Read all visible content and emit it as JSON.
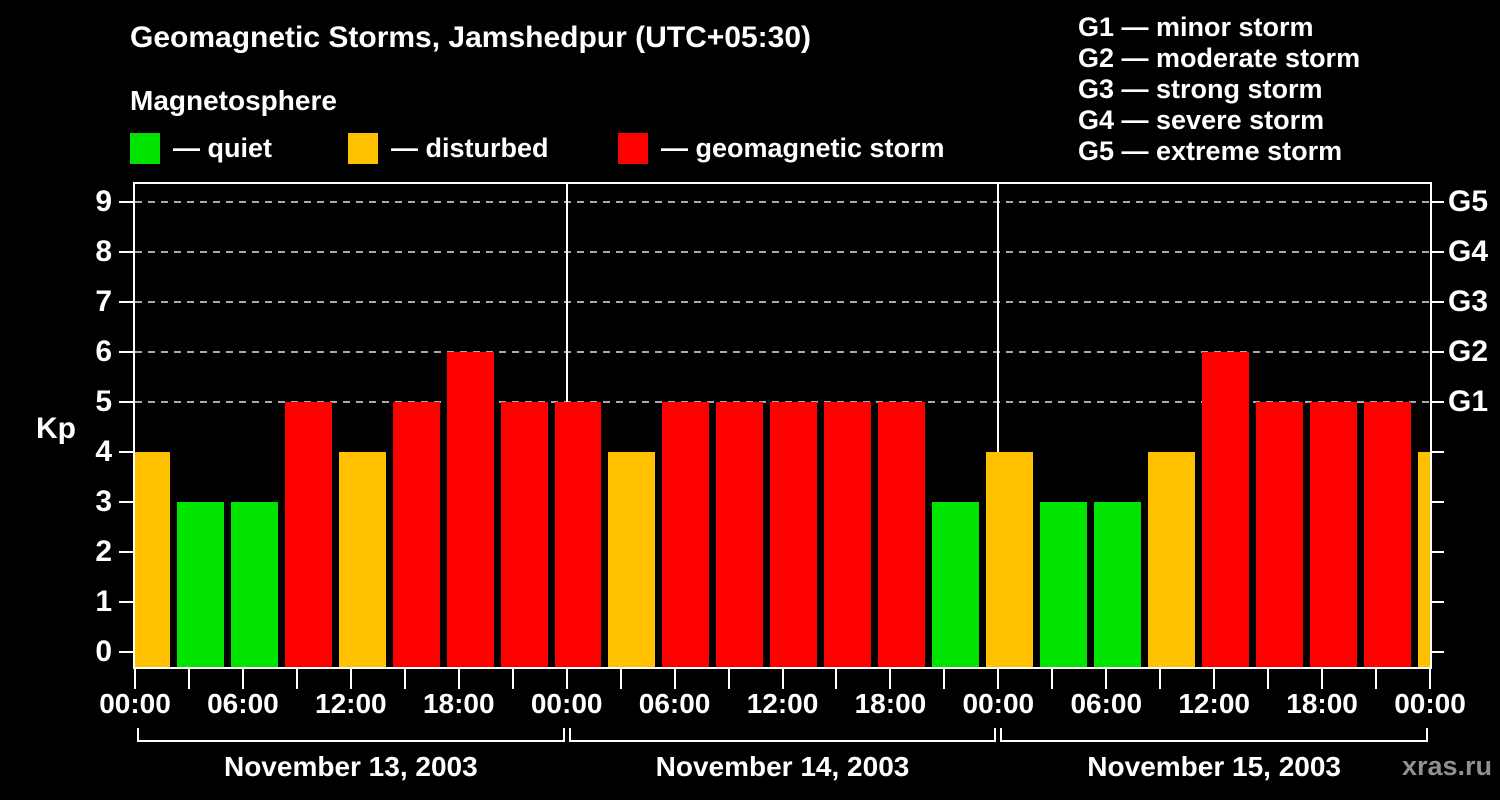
{
  "header": {
    "title": "Geomagnetic Storms, Jamshedpur (UTC+05:30)",
    "subtitle": "Magnetosphere"
  },
  "legend": {
    "items": [
      {
        "status": "quiet",
        "label": "— quiet"
      },
      {
        "status": "disturbed",
        "label": "— disturbed"
      },
      {
        "status": "storm",
        "label": "— geomagnetic storm"
      }
    ]
  },
  "g_scale_legend": {
    "lines": [
      "G1 — minor storm",
      "G2 — moderate storm",
      "G3 — strong storm",
      "G4 — severe storm",
      "G5 — extreme storm"
    ]
  },
  "axis": {
    "y_title": "Kp",
    "y_ticks": [
      0,
      1,
      2,
      3,
      4,
      5,
      6,
      7,
      8,
      9
    ],
    "g_levels": [
      {
        "label": "G1",
        "kp": 5
      },
      {
        "label": "G2",
        "kp": 6
      },
      {
        "label": "G3",
        "kp": 7
      },
      {
        "label": "G4",
        "kp": 8
      },
      {
        "label": "G5",
        "kp": 9
      }
    ],
    "gridlines_at_kp": [
      5,
      6,
      7,
      8,
      9
    ],
    "time_label_cycle": [
      "00:00",
      "06:00",
      "12:00",
      "18:00"
    ]
  },
  "watermark": "xras.ru",
  "chart_data": {
    "type": "bar",
    "title": "Geomagnetic Storms, Jamshedpur (UTC+05:30)",
    "subtitle": "Magnetosphere",
    "ylabel": "Kp",
    "ylim": [
      0,
      9
    ],
    "bars_per_day": 8,
    "hours_per_bar": 3,
    "days": [
      {
        "date": "November 13, 2003",
        "kp": [
          4,
          3,
          3,
          5,
          4,
          5,
          6,
          5
        ]
      },
      {
        "date": "November 14, 2003",
        "kp": [
          5,
          4,
          5,
          5,
          5,
          5,
          5,
          3
        ]
      },
      {
        "date": "November 15, 2003",
        "kp": [
          4,
          3,
          3,
          4,
          6,
          5,
          5,
          5
        ]
      }
    ],
    "trailing_partial_bar_kp": 4,
    "leading_bar_clipped_left": true,
    "color_rule": {
      "quiet_max_kp": 3,
      "disturbed_kp": 4,
      "storm_min_kp": 5
    },
    "colors": {
      "quiet": "#00e400",
      "disturbed": "#ffc000",
      "storm": "#ff0000",
      "grid": "#a8a8a8",
      "axis": "#ffffff",
      "background": "#000000"
    },
    "legend_position": "top-left",
    "grid": "dashed horizontal at G-storm levels only"
  }
}
